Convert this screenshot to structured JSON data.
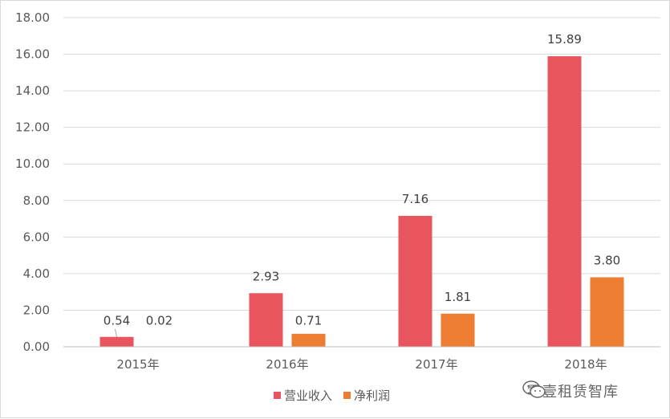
{
  "chart_data": {
    "type": "bar",
    "categories": [
      "2015年",
      "2016年",
      "2017年",
      "2018年"
    ],
    "series": [
      {
        "name": "营业收入",
        "values": [
          0.54,
          2.93,
          7.16,
          15.89
        ],
        "labels": [
          "0.54",
          "2.93",
          "7.16",
          "15.89"
        ],
        "color": "#e9555f"
      },
      {
        "name": "净利润",
        "values": [
          0.02,
          0.71,
          1.81,
          3.8
        ],
        "labels": [
          "0.02",
          "0.71",
          "1.81",
          "3.80"
        ],
        "color": "#ed7d31"
      }
    ],
    "ylim": [
      0,
      18
    ],
    "yticks": [
      0,
      2,
      4,
      6,
      8,
      10,
      12,
      14,
      16,
      18
    ],
    "ytick_labels": [
      "0.00",
      "2.00",
      "4.00",
      "6.00",
      "8.00",
      "10.00",
      "12.00",
      "14.00",
      "16.00",
      "18.00"
    ],
    "grid": true,
    "legend_position": "bottom"
  },
  "watermark": {
    "text": "零壹租赁智库",
    "icon": "wechat-icon"
  }
}
